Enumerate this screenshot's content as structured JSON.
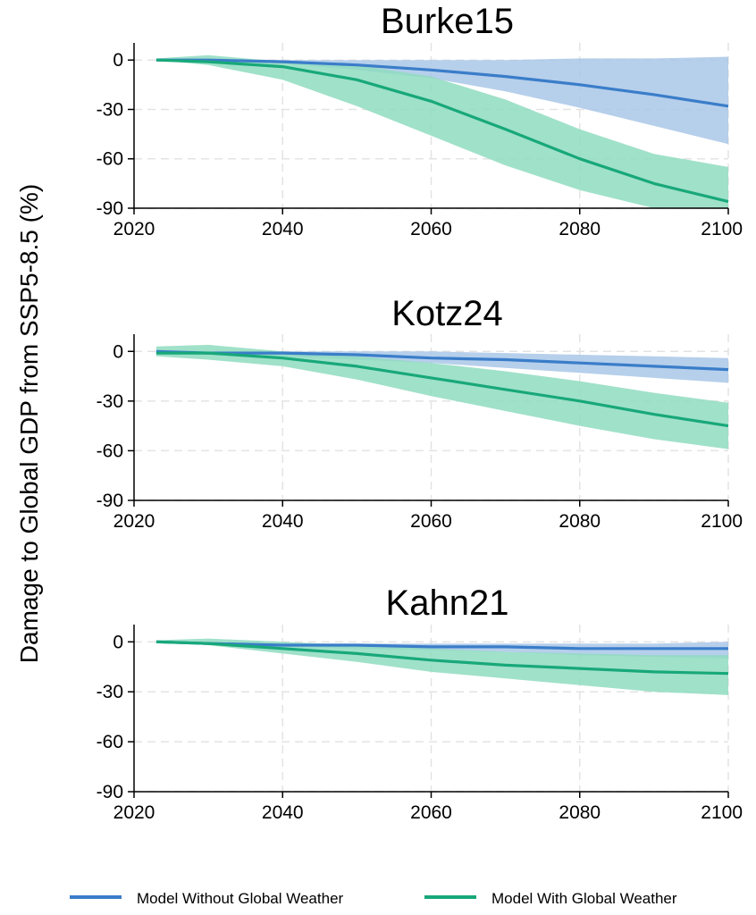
{
  "figure": {
    "ylabel": "Damage to Global GDP from SSP5-8.5 (%)"
  },
  "legend": {
    "items": [
      {
        "label": "Model Without Global Weather",
        "color": "#3a7dc9"
      },
      {
        "label": "Model With Global Weather",
        "color": "#18a87a"
      }
    ]
  },
  "colors": {
    "without_line": "#3a7dc9",
    "without_band": "#a9c7e8",
    "with_line": "#18a87a",
    "with_band": "#8fdcc0",
    "grid": "#e3e3e3",
    "axis": "#000000"
  },
  "chart_data": [
    {
      "type": "line",
      "title": "Burke15",
      "xlim": [
        2020,
        2100
      ],
      "ylim": [
        -90,
        5
      ],
      "xticks": [
        2020,
        2040,
        2060,
        2080,
        2100
      ],
      "yticks": [
        0,
        -30,
        -60,
        -90
      ],
      "grid": true,
      "x": [
        2023,
        2030,
        2040,
        2050,
        2060,
        2070,
        2080,
        2090,
        2100
      ],
      "series": [
        {
          "name": "Model Without Global Weather",
          "values": [
            0,
            0,
            -1,
            -3,
            -6,
            -10,
            -15,
            -21,
            -28
          ],
          "lower": [
            0,
            -1,
            -2,
            -6,
            -11,
            -19,
            -29,
            -40,
            -51
          ],
          "upper": [
            0,
            1,
            0,
            0,
            0,
            0,
            1,
            1,
            2
          ]
        },
        {
          "name": "Model With Global Weather",
          "values": [
            0,
            -1,
            -4,
            -12,
            -25,
            -42,
            -60,
            -75,
            -86
          ],
          "lower": [
            0,
            -3,
            -12,
            -28,
            -46,
            -64,
            -79,
            -90,
            -95
          ],
          "upper": [
            1,
            3,
            -1,
            -3,
            -10,
            -24,
            -42,
            -57,
            -65
          ]
        }
      ]
    },
    {
      "type": "line",
      "title": "Kotz24",
      "xlim": [
        2020,
        2100
      ],
      "ylim": [
        -90,
        5
      ],
      "xticks": [
        2020,
        2040,
        2060,
        2080,
        2100
      ],
      "yticks": [
        0,
        -30,
        -60,
        -90
      ],
      "grid": true,
      "x": [
        2023,
        2030,
        2040,
        2050,
        2060,
        2070,
        2080,
        2090,
        2100
      ],
      "series": [
        {
          "name": "Model Without Global Weather",
          "values": [
            0,
            -1,
            -1,
            -2,
            -4,
            -5,
            -7,
            -9,
            -11
          ],
          "lower": [
            -1,
            -2,
            -3,
            -5,
            -7,
            -10,
            -13,
            -16,
            -19
          ],
          "upper": [
            1,
            0,
            0,
            0,
            0,
            -1,
            -2,
            -3,
            -4
          ]
        },
        {
          "name": "Model With Global Weather",
          "values": [
            -1,
            -1,
            -4,
            -9,
            -16,
            -23,
            -30,
            -38,
            -45
          ],
          "lower": [
            -3,
            -5,
            -9,
            -17,
            -27,
            -36,
            -45,
            -53,
            -59
          ],
          "upper": [
            3,
            4,
            0,
            -3,
            -7,
            -12,
            -18,
            -25,
            -31
          ]
        }
      ]
    },
    {
      "type": "line",
      "title": "Kahn21",
      "xlim": [
        2020,
        2100
      ],
      "ylim": [
        -90,
        5
      ],
      "xticks": [
        2020,
        2040,
        2060,
        2080,
        2100
      ],
      "yticks": [
        0,
        -30,
        -60,
        -90
      ],
      "grid": true,
      "x": [
        2023,
        2030,
        2040,
        2050,
        2060,
        2070,
        2080,
        2090,
        2100
      ],
      "series": [
        {
          "name": "Model Without Global Weather",
          "values": [
            0,
            -1,
            -2,
            -2,
            -3,
            -3,
            -4,
            -4,
            -4
          ],
          "lower": [
            0,
            -2,
            -3,
            -4,
            -5,
            -6,
            -8,
            -9,
            -10
          ],
          "upper": [
            0,
            0,
            -1,
            -1,
            -1,
            -1,
            -1,
            -1,
            0
          ]
        },
        {
          "name": "Model With Global Weather",
          "values": [
            0,
            -1,
            -4,
            -7,
            -11,
            -14,
            -16,
            -18,
            -19
          ],
          "lower": [
            0,
            -2,
            -7,
            -12,
            -18,
            -22,
            -26,
            -30,
            -32
          ],
          "upper": [
            1,
            2,
            0,
            -2,
            -4,
            -6,
            -7,
            -8,
            -8
          ]
        }
      ]
    }
  ]
}
